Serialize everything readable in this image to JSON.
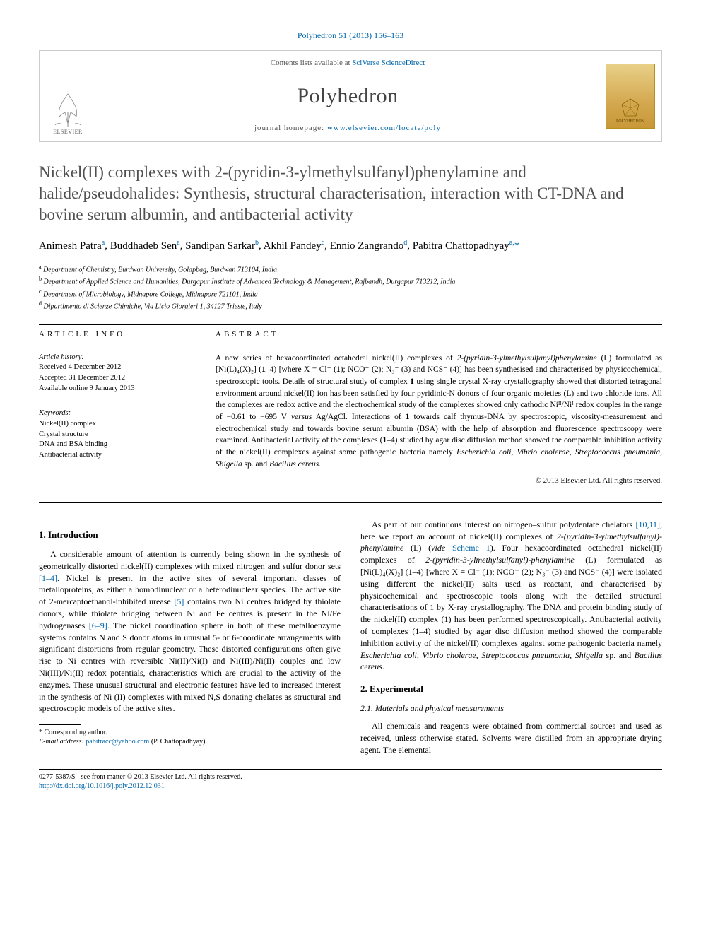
{
  "journal_ref": "Polyhedron 51 (2013) 156–163",
  "header": {
    "contents_prefix": "Contents lists available at ",
    "contents_link": "SciVerse ScienceDirect",
    "journal_name": "Polyhedron",
    "homepage_prefix": "journal homepage: ",
    "homepage_url": "www.elsevier.com/locate/poly",
    "publisher": "ELSEVIER",
    "cover_label": "POLYHEDRON"
  },
  "title": "Nickel(II) complexes with 2-(pyridin-3-ylmethylsulfanyl)phenylamine and halide/pseudohalides: Synthesis, structural characterisation, interaction with CT-DNA and bovine serum albumin, and antibacterial activity",
  "authors_html": "Animesh Patra<sup>a</sup>, Buddhadeb Sen<sup>a</sup>, Sandipan Sarkar<sup>b</sup>, Akhil Pandey<sup>c</sup>, Ennio Zangrando<sup>d</sup>, Pabitra Chattopadhyay<sup>a,</sup><span class='corr'>*</span>",
  "affiliations": [
    {
      "sup": "a",
      "text": "Department of Chemistry, Burdwan University, Golapbag, Burdwan 713104, India"
    },
    {
      "sup": "b",
      "text": "Department of Applied Science and Humanities, Durgapur Institute of Advanced Technology & Management, Rajbandh, Durgapur 713212, India"
    },
    {
      "sup": "c",
      "text": "Department of Microbiology, Midnapore College, Midnapore 721101, India"
    },
    {
      "sup": "d",
      "text": "Dipartimento di Scienze Chimiche, Via Licio Giorgieri 1, 34127 Trieste, Italy"
    }
  ],
  "article_info": {
    "label": "ARTICLE INFO",
    "history_hdr": "Article history:",
    "history": [
      "Received 4 December 2012",
      "Accepted 31 December 2012",
      "Available online 9 January 2013"
    ],
    "keywords_hdr": "Keywords:",
    "keywords": [
      "Nickel(II) complex",
      "Crystal structure",
      "DNA and BSA binding",
      "Antibacterial activity"
    ]
  },
  "abstract": {
    "label": "ABSTRACT",
    "text": "A new series of hexacoordinated octahedral nickel(II) complexes of 2-(pyridin-3-ylmethylsulfanyl)phenylamine (L) formulated as [Ni(L)₄(X)₂] (1–4) [where X = Cl⁻ (1); NCO⁻ (2); N₃⁻ (3) and NCS⁻ (4)] has been synthesised and characterised by physicochemical, spectroscopic tools. Details of structural study of complex 1 using single crystal X-ray crystallography showed that distorted tetragonal environment around nickel(II) ion has been satisfied by four pyridinic-N donors of four organic moieties (L) and two chloride ions. All the complexes are redox active and the electrochemical study of the complexes showed only cathodic Niᴵᴵ/Niᴵ redox couples in the range of −0.61 to −695 V versus Ag/AgCl. Interactions of 1 towards calf thymus-DNA by spectroscopic, viscosity-measurement and electrochemical study and towards bovine serum albumin (BSA) with the help of absorption and fluorescence spectroscopy were examined. Antibacterial activity of the complexes (1–4) studied by agar disc diffusion method showed the comparable inhibition activity of the nickel(II) complexes against some pathogenic bacteria namely Escherichia coli, Vibrio cholerae, Streptococcus pneumonia, Shigella sp. and Bacillus cereus.",
    "copyright": "© 2013 Elsevier Ltd. All rights reserved."
  },
  "sections": {
    "intro_heading": "1. Introduction",
    "intro_p1": "A considerable amount of attention is currently being shown in the synthesis of geometrically distorted nickel(II) complexes with mixed nitrogen and sulfur donor sets [1–4]. Nickel is present in the active sites of several important classes of metalloproteins, as either a homodinuclear or a heterodinuclear species. The active site of 2-mercaptoethanol-inhibited urease [5] contains two Ni centres bridged by thiolate donors, while thiolate bridging between Ni and Fe centres is present in the Ni/Fe hydrogenases [6–9]. The nickel coordination sphere in both of these metalloenzyme systems contains N and S donor atoms in unusual 5- or 6-coordinate arrangements with significant distortions from regular geometry. These distorted configurations often give rise to Ni centres with reversible Ni(II)/Ni(I) and Ni(III)/Ni(II) couples and low Ni(III)/Ni(II) redox potentials, characteristics which are crucial to the activity of the enzymes. These unusual structural and electronic features have led to increased interest in the synthesis of Ni (II) complexes with mixed N,S donating chelates as structural and spectroscopic models of the active sites.",
    "intro_p2": "As part of our continuous interest on nitrogen–sulfur polydentate chelators [10,11], here we report an account of nickel(II) complexes of 2-(pyridin-3-ylmethylsulfanyl)-phenylamine (L) (vide Scheme 1). Four hexacoordinated octahedral nickel(II) complexes of 2-(pyridin-3-ylmethylsulfanyl)-phenylamine (L) formulated as [Ni(L)₄(X)₂] (1–4) [where X = Cl⁻ (1); NCO⁻ (2); N₃⁻ (3) and NCS⁻ (4)] were isolated using different the nickel(II) salts used as reactant, and characterised by physicochemical and spectroscopic tools along with the detailed structural characterisations of 1 by X-ray crystallography. The DNA and protein binding study of the nickel(II) complex (1) has been performed spectroscopically. Antibacterial activity of complexes (1–4) studied by agar disc diffusion method showed the comparable inhibition activity of the nickel(II) complexes against some pathogenic bacteria namely Escherichia coli, Vibrio cholerae, Streptococcus pneumonia, Shigella sp. and Bacillus cereus.",
    "exp_heading": "2. Experimental",
    "exp_sub": "2.1. Materials and physical measurements",
    "exp_p1": "All chemicals and reagents were obtained from commercial sources and used as received, unless otherwise stated. Solvents were distilled from an appropriate drying agent. The elemental"
  },
  "footnote": {
    "corr_label": "* Corresponding author.",
    "email_label": "E-mail address:",
    "email": "pabitracc@yahoo.com",
    "email_who": "(P. Chattopadhyay)."
  },
  "footer": {
    "line1": "0277-5387/$ - see front matter © 2013 Elsevier Ltd. All rights reserved.",
    "doi": "http://dx.doi.org/10.1016/j.poly.2012.12.031"
  },
  "colors": {
    "link": "#0066aa",
    "title_gray": "#505050",
    "border": "#cccccc"
  }
}
